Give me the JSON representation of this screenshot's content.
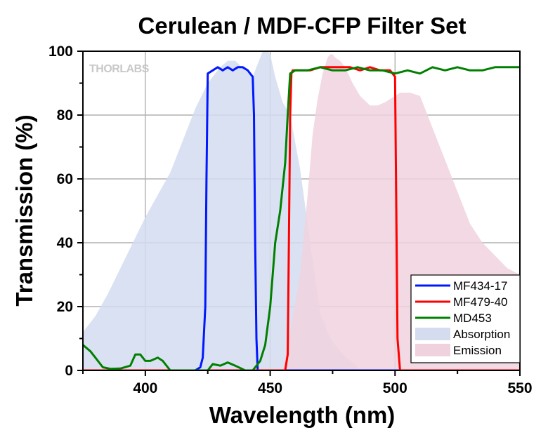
{
  "chart_data": {
    "type": "line",
    "title": "Cerulean / MDF-CFP Filter Set",
    "xlabel": "Wavelength (nm)",
    "ylabel": "Transmission (%)",
    "xlim": [
      375,
      550
    ],
    "ylim": [
      0,
      100
    ],
    "xticks": [
      400,
      450,
      500,
      550
    ],
    "yticks": [
      0,
      20,
      40,
      60,
      80,
      100
    ],
    "grid": true,
    "legend_position": "bottom-right",
    "brand_logo": "THORLABS",
    "series": [
      {
        "name": "MF434-17",
        "kind": "line",
        "color": "#0018ff",
        "x": [
          375,
          420,
          422,
          423,
          424,
          424.5,
          425,
          427,
          429,
          431,
          433,
          435,
          437,
          439,
          441,
          442,
          443,
          443.5,
          444,
          444.5,
          445,
          447,
          550
        ],
        "y": [
          0,
          0,
          1,
          4,
          20,
          60,
          93,
          94,
          95,
          94,
          95,
          94,
          95,
          95,
          94,
          93,
          92,
          80,
          40,
          10,
          0,
          0,
          0
        ]
      },
      {
        "name": "MF479-40",
        "kind": "line",
        "color": "#ff0000",
        "x": [
          375,
          456,
          457,
          457.5,
          458,
          458.5,
          459,
          462,
          466,
          470,
          474,
          478,
          482,
          486,
          490,
          494,
          498,
          499,
          500,
          500.5,
          501,
          502,
          550
        ],
        "y": [
          0,
          0,
          5,
          40,
          80,
          93,
          94,
          94,
          94,
          95,
          95,
          95,
          95,
          94,
          95,
          94,
          94,
          93,
          92,
          50,
          10,
          0,
          0
        ]
      },
      {
        "name": "MD453",
        "kind": "line",
        "color": "#008000",
        "x": [
          375,
          378,
          380,
          383,
          386,
          390,
          394,
          396,
          398,
          400,
          402,
          405,
          407,
          409,
          410,
          412,
          420,
          425,
          427,
          430,
          433,
          436,
          440,
          443,
          446,
          448,
          450,
          452,
          454,
          456,
          457,
          458,
          460,
          465,
          470,
          475,
          480,
          485,
          490,
          495,
          500,
          505,
          510,
          515,
          520,
          525,
          530,
          535,
          540,
          545,
          550
        ],
        "y": [
          8,
          6,
          4,
          1,
          0.5,
          0.6,
          1.5,
          5,
          5,
          3,
          3,
          4,
          3,
          1,
          0,
          0,
          0,
          0,
          2,
          1.5,
          2.5,
          1.5,
          0,
          0,
          3,
          8,
          20,
          40,
          50,
          65,
          80,
          93,
          94,
          94,
          95,
          94,
          94,
          95,
          94,
          94,
          93,
          94,
          93,
          95,
          94,
          95,
          94,
          94,
          95,
          95,
          95
        ]
      },
      {
        "name": "Absorption",
        "kind": "area",
        "color": "#d4dcf0",
        "x": [
          375,
          380,
          385,
          390,
          395,
          400,
          405,
          410,
          415,
          420,
          425,
          430,
          433,
          436,
          440,
          443,
          445,
          447,
          448,
          449,
          450,
          452,
          455,
          458,
          462,
          466,
          470,
          474,
          478,
          482,
          485,
          486
        ],
        "y": [
          12,
          17,
          24,
          32,
          40,
          48,
          55,
          62,
          72,
          82,
          90,
          95,
          97,
          97,
          94,
          92,
          96,
          100,
          100,
          100,
          99,
          92,
          84,
          80,
          63,
          40,
          18,
          10,
          6,
          3,
          1,
          0
        ]
      },
      {
        "name": "Emission",
        "kind": "area",
        "color": "#f0d2de",
        "x": [
          455,
          458,
          462,
          465,
          467,
          469,
          471,
          473,
          474,
          475,
          476,
          478,
          480,
          483,
          486,
          490,
          493,
          496,
          498,
          500,
          502,
          504,
          506,
          510,
          515,
          520,
          525,
          530,
          535,
          540,
          545,
          550
        ],
        "y": [
          0,
          12,
          30,
          55,
          74,
          85,
          93,
          98,
          99,
          99,
          98,
          97,
          95,
          90,
          86,
          83,
          83,
          84,
          85,
          86,
          87,
          87,
          87,
          86,
          76,
          66,
          56,
          46,
          40,
          36,
          32,
          30
        ]
      }
    ]
  }
}
